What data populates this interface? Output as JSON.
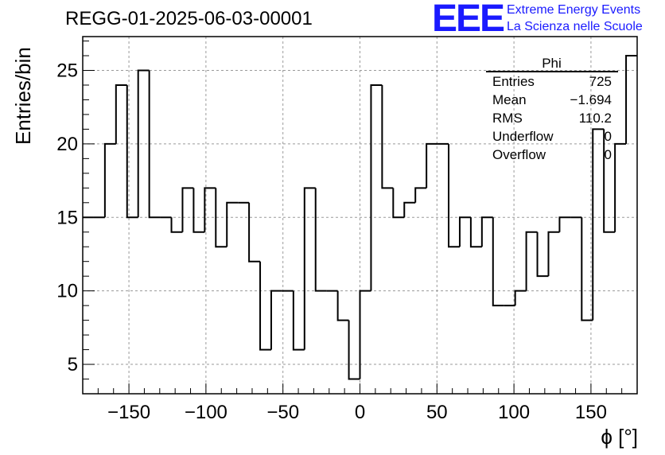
{
  "title": "REGG-01-2025-06-03-00001",
  "logo": {
    "mark": "EEE",
    "line1": "Extreme Energy Events",
    "line2": "La Scienza nelle Scuole"
  },
  "stats": {
    "name": "Phi",
    "rows": [
      {
        "key": "Entries",
        "value": "725"
      },
      {
        "key": "Mean",
        "value": "−1.694"
      },
      {
        "key": "RMS",
        "value": "110.2"
      },
      {
        "key": "Underflow",
        "value": "0"
      },
      {
        "key": "Overflow",
        "value": "0"
      }
    ]
  },
  "colors": {
    "line": "#000000",
    "grid": "#9a9a9a",
    "logo": "#1a1aff"
  },
  "chart_data": {
    "type": "histogram",
    "xlabel": "ϕ [°]",
    "ylabel": "Entries/bin",
    "xlim": [
      -180,
      180
    ],
    "ylim": [
      3,
      27.3
    ],
    "bin_width": 7.2,
    "bin_edges_start": -180,
    "values": [
      15,
      15,
      20,
      24,
      15,
      25,
      15,
      15,
      14,
      17,
      14,
      17,
      13,
      16,
      16,
      12,
      6,
      10,
      10,
      6,
      17,
      10,
      10,
      8,
      4,
      10,
      24,
      17,
      15,
      16,
      17,
      20,
      20,
      13,
      15,
      13,
      15,
      9,
      9,
      10,
      14,
      11,
      14,
      15,
      15,
      8,
      21,
      14,
      20,
      26
    ],
    "xticks": [
      -150,
      -100,
      -50,
      0,
      50,
      100,
      150
    ],
    "yticks": [
      5,
      10,
      15,
      20,
      25
    ],
    "xtick_labels": [
      "−150",
      "−100",
      "−50",
      "0",
      "50",
      "100",
      "150"
    ],
    "ytick_labels": [
      "5",
      "10",
      "15",
      "20",
      "25"
    ],
    "grid": true
  }
}
